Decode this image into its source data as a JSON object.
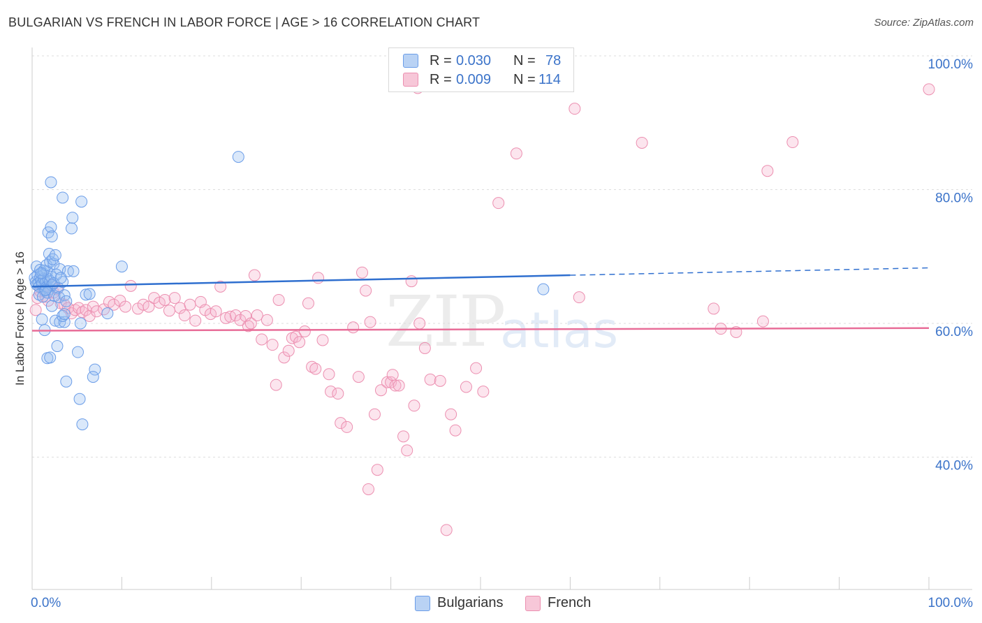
{
  "title": "BULGARIAN VS FRENCH IN LABOR FORCE | AGE > 16 CORRELATION CHART",
  "source": "Source: ZipAtlas.com",
  "watermark": "ZIP",
  "watermark2": "atlas",
  "legend": {
    "r_label": "R =",
    "n_label": "N =",
    "rows": [
      {
        "r": "0.030",
        "n": "78"
      },
      {
        "r": "0.009",
        "n": "114"
      }
    ]
  },
  "chart_data": {
    "type": "scatter",
    "title": "BULGARIAN VS FRENCH IN LABOR FORCE | AGE > 16 CORRELATION CHART",
    "xlabel": "",
    "ylabel": "In Labor Force | Age > 16",
    "xlim": [
      0,
      100
    ],
    "ylim": [
      20,
      100
    ],
    "x_tick_labels": [
      "0.0%",
      "100.0%"
    ],
    "y_ticks": [
      40,
      60,
      80,
      100
    ],
    "y_tick_labels": [
      "40.0%",
      "60.0%",
      "80.0%",
      "100.0%"
    ],
    "grid": true,
    "legend_position": "top-center",
    "colors": {
      "Bulgarians": "#6b9de8",
      "Bulgarians_fill": "#b9d2f4",
      "Bulgarians_line": "#2f6fcf",
      "French": "#ec8fb0",
      "French_fill": "#f7c7d8",
      "French_line": "#e86d98",
      "axis_text": "#3b73c9",
      "grid": "#dddddd"
    },
    "series": [
      {
        "name": "Bulgarians",
        "R": 0.03,
        "N": 78,
        "trend": {
          "x": [
            0,
            60
          ],
          "y": [
            65.5,
            67.2
          ],
          "dashed_to": [
            100,
            68.3
          ]
        },
        "points": [
          [
            0.3,
            66.8
          ],
          [
            0.4,
            66.2
          ],
          [
            0.5,
            65.8
          ],
          [
            0.6,
            67.2
          ],
          [
            0.7,
            66.0
          ],
          [
            0.8,
            65.5
          ],
          [
            0.9,
            66.9
          ],
          [
            1.0,
            66.4
          ],
          [
            1.1,
            65.9
          ],
          [
            1.2,
            67.5
          ],
          [
            1.3,
            66.7
          ],
          [
            1.4,
            64.9
          ],
          [
            1.5,
            66.1
          ],
          [
            1.6,
            65.4
          ],
          [
            1.7,
            67.8
          ],
          [
            1.8,
            66.6
          ],
          [
            1.9,
            65.1
          ],
          [
            2.0,
            66.3
          ],
          [
            2.1,
            67.0
          ],
          [
            2.2,
            65.7
          ],
          [
            0.5,
            68.5
          ],
          [
            0.9,
            68.0
          ],
          [
            1.3,
            67.9
          ],
          [
            1.6,
            68.7
          ],
          [
            2.0,
            69.2
          ],
          [
            2.4,
            68.9
          ],
          [
            1.9,
            70.4
          ],
          [
            2.3,
            69.6
          ],
          [
            2.6,
            70.2
          ],
          [
            3.1,
            68.1
          ],
          [
            0.8,
            64.3
          ],
          [
            1.2,
            64.0
          ],
          [
            1.7,
            64.6
          ],
          [
            2.5,
            64.1
          ],
          [
            2.9,
            65.3
          ],
          [
            3.4,
            66.2
          ],
          [
            3.0,
            63.9
          ],
          [
            3.6,
            64.2
          ],
          [
            3.8,
            63.3
          ],
          [
            2.2,
            62.6
          ],
          [
            4.0,
            67.8
          ],
          [
            4.6,
            67.8
          ],
          [
            6.0,
            64.3
          ],
          [
            6.4,
            64.4
          ],
          [
            8.4,
            61.5
          ],
          [
            10.0,
            68.5
          ],
          [
            1.1,
            60.6
          ],
          [
            2.6,
            60.4
          ],
          [
            3.1,
            60.2
          ],
          [
            3.6,
            60.2
          ],
          [
            3.4,
            61.1
          ],
          [
            3.6,
            61.4
          ],
          [
            5.4,
            60.0
          ],
          [
            1.4,
            59.0
          ],
          [
            2.8,
            56.6
          ],
          [
            5.1,
            55.7
          ],
          [
            1.7,
            54.8
          ],
          [
            2.0,
            54.9
          ],
          [
            7.0,
            53.1
          ],
          [
            6.8,
            52.0
          ],
          [
            3.8,
            51.3
          ],
          [
            5.3,
            48.7
          ],
          [
            5.6,
            44.9
          ],
          [
            1.8,
            73.6
          ],
          [
            2.1,
            74.4
          ],
          [
            2.2,
            73.0
          ],
          [
            4.4,
            74.2
          ],
          [
            4.5,
            75.8
          ],
          [
            3.4,
            78.8
          ],
          [
            5.5,
            78.2
          ],
          [
            2.1,
            81.1
          ],
          [
            23.0,
            84.9
          ],
          [
            57.0,
            65.1
          ],
          [
            1.0,
            67.5
          ],
          [
            2.7,
            67.3
          ],
          [
            1.5,
            65.0
          ],
          [
            2.4,
            66.0
          ],
          [
            3.2,
            66.8
          ]
        ]
      },
      {
        "name": "French",
        "R": 0.009,
        "N": 114,
        "trend": {
          "x": [
            0,
            100
          ],
          "y": [
            58.9,
            59.3
          ]
        },
        "points": [
          [
            0.4,
            62.0
          ],
          [
            0.6,
            63.8
          ],
          [
            0.9,
            64.8
          ],
          [
            1.2,
            65.2
          ],
          [
            1.5,
            64.0
          ],
          [
            1.8,
            63.4
          ],
          [
            2.1,
            65.8
          ],
          [
            2.4,
            64.6
          ],
          [
            2.8,
            65.1
          ],
          [
            3.2,
            63.0
          ],
          [
            3.6,
            62.8
          ],
          [
            4.0,
            62.3
          ],
          [
            4.4,
            61.5
          ],
          [
            4.8,
            62.0
          ],
          [
            5.2,
            62.3
          ],
          [
            5.6,
            61.7
          ],
          [
            6.0,
            62.0
          ],
          [
            6.4,
            61.1
          ],
          [
            6.8,
            62.5
          ],
          [
            7.2,
            61.8
          ],
          [
            8.0,
            62.1
          ],
          [
            8.6,
            63.2
          ],
          [
            9.1,
            62.8
          ],
          [
            9.8,
            63.4
          ],
          [
            10.4,
            62.5
          ],
          [
            11.0,
            65.6
          ],
          [
            11.8,
            62.2
          ],
          [
            12.4,
            62.8
          ],
          [
            13.0,
            62.5
          ],
          [
            13.6,
            63.8
          ],
          [
            14.2,
            63.1
          ],
          [
            14.8,
            63.5
          ],
          [
            15.3,
            61.9
          ],
          [
            15.9,
            63.8
          ],
          [
            16.5,
            62.3
          ],
          [
            17.0,
            61.2
          ],
          [
            17.6,
            62.8
          ],
          [
            18.2,
            60.4
          ],
          [
            18.8,
            63.2
          ],
          [
            19.3,
            62.0
          ],
          [
            19.9,
            61.4
          ],
          [
            20.5,
            61.8
          ],
          [
            21.0,
            65.5
          ],
          [
            21.6,
            60.8
          ],
          [
            22.1,
            61.0
          ],
          [
            22.7,
            61.2
          ],
          [
            23.2,
            60.5
          ],
          [
            23.8,
            61.1
          ],
          [
            24.1,
            59.6
          ],
          [
            24.4,
            60.0
          ],
          [
            24.8,
            67.2
          ],
          [
            25.1,
            61.2
          ],
          [
            25.6,
            57.6
          ],
          [
            26.2,
            60.5
          ],
          [
            26.8,
            56.8
          ],
          [
            27.2,
            50.8
          ],
          [
            27.5,
            63.5
          ],
          [
            28.1,
            54.9
          ],
          [
            28.6,
            55.9
          ],
          [
            29.0,
            57.8
          ],
          [
            29.4,
            58.0
          ],
          [
            29.8,
            57.2
          ],
          [
            30.4,
            58.8
          ],
          [
            30.8,
            63.0
          ],
          [
            31.2,
            53.5
          ],
          [
            31.6,
            53.2
          ],
          [
            31.9,
            66.8
          ],
          [
            32.4,
            57.5
          ],
          [
            33.1,
            52.4
          ],
          [
            33.3,
            49.8
          ],
          [
            34.1,
            49.5
          ],
          [
            34.4,
            45.1
          ],
          [
            35.1,
            44.5
          ],
          [
            35.8,
            59.4
          ],
          [
            36.4,
            52.0
          ],
          [
            36.8,
            67.6
          ],
          [
            37.2,
            64.9
          ],
          [
            37.7,
            60.2
          ],
          [
            38.2,
            46.4
          ],
          [
            38.9,
            50.0
          ],
          [
            39.6,
            51.2
          ],
          [
            40.0,
            51.2
          ],
          [
            40.2,
            52.3
          ],
          [
            40.5,
            50.7
          ],
          [
            40.9,
            50.7
          ],
          [
            41.4,
            43.1
          ],
          [
            41.8,
            41.0
          ],
          [
            42.3,
            66.3
          ],
          [
            42.6,
            47.7
          ],
          [
            43.2,
            60.0
          ],
          [
            43.8,
            56.3
          ],
          [
            44.4,
            51.6
          ],
          [
            45.5,
            51.4
          ],
          [
            46.2,
            29.1
          ],
          [
            46.7,
            46.4
          ],
          [
            47.2,
            44.0
          ],
          [
            48.4,
            50.5
          ],
          [
            49.5,
            53.3
          ],
          [
            50.3,
            49.8
          ],
          [
            52.0,
            78.0
          ],
          [
            54.0,
            85.4
          ],
          [
            60.5,
            92.1
          ],
          [
            61.0,
            63.9
          ],
          [
            68.0,
            87.0
          ],
          [
            76.0,
            62.2
          ],
          [
            76.8,
            59.2
          ],
          [
            78.5,
            58.7
          ],
          [
            81.5,
            60.3
          ],
          [
            82.0,
            82.8
          ],
          [
            84.8,
            87.1
          ],
          [
            100.0,
            95.0
          ],
          [
            43.0,
            95.2
          ],
          [
            37.5,
            35.2
          ],
          [
            38.5,
            38.1
          ]
        ]
      }
    ]
  }
}
